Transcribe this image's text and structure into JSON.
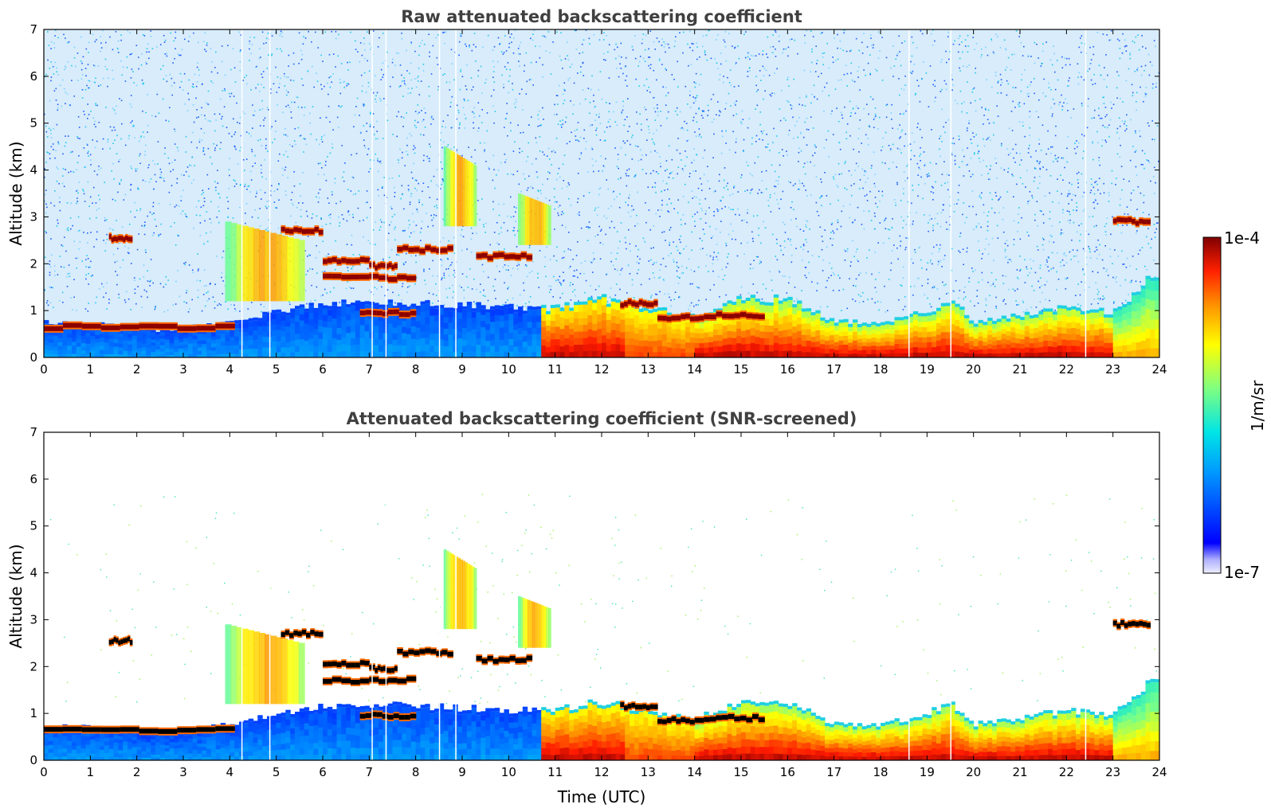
{
  "chart_data": [
    {
      "type": "heatmap",
      "title": "Raw attenuated backscattering coefficient",
      "xlabel": "",
      "ylabel": "Altitude (km)",
      "xlim": [
        0,
        24
      ],
      "ylim": [
        0,
        7
      ],
      "xticks": [
        "0",
        "1",
        "2",
        "3",
        "4",
        "5",
        "6",
        "7",
        "8",
        "9",
        "10",
        "11",
        "12",
        "13",
        "14",
        "15",
        "16",
        "17",
        "18",
        "19",
        "20",
        "21",
        "22",
        "23",
        "24"
      ],
      "yticks": [
        "0",
        "1",
        "2",
        "3",
        "4",
        "5",
        "6",
        "7"
      ],
      "screened": false
    },
    {
      "type": "heatmap",
      "title": "Attenuated backscattering coefficient (SNR-screened)",
      "xlabel": "Time (UTC)",
      "ylabel": "Altitude (km)",
      "xlim": [
        0,
        24
      ],
      "ylim": [
        0,
        7
      ],
      "xticks": [
        "0",
        "1",
        "2",
        "3",
        "4",
        "5",
        "6",
        "7",
        "8",
        "9",
        "10",
        "11",
        "12",
        "13",
        "14",
        "15",
        "16",
        "17",
        "18",
        "19",
        "20",
        "21",
        "22",
        "23",
        "24"
      ],
      "yticks": [
        "0",
        "1",
        "2",
        "3",
        "4",
        "5",
        "6",
        "7"
      ],
      "screened": true
    }
  ],
  "colorbar": {
    "max_label": "1e-4",
    "min_label": "1e-7",
    "unit_label": "1/m/sr",
    "scale": "log"
  },
  "features": {
    "boundary_layer_top_km": [
      [
        0,
        0.7
      ],
      [
        2,
        0.6
      ],
      [
        2.5,
        0.5
      ],
      [
        4,
        0.7
      ],
      [
        6,
        1.1
      ],
      [
        8,
        1.1
      ],
      [
        10,
        1.0
      ],
      [
        11,
        1.0
      ],
      [
        12,
        1.2
      ],
      [
        13,
        1.0
      ],
      [
        14,
        0.8
      ],
      [
        15,
        1.2
      ],
      [
        16,
        1.2
      ],
      [
        17,
        0.7
      ],
      [
        18,
        0.7
      ],
      [
        19,
        0.9
      ],
      [
        19.5,
        1.2
      ],
      [
        20,
        0.7
      ],
      [
        22,
        1.0
      ],
      [
        23,
        0.9
      ],
      [
        23.8,
        1.6
      ]
    ],
    "cloud_layers": [
      {
        "t0": 0.0,
        "t1": 4.1,
        "alt_km": 0.65
      },
      {
        "t0": 1.4,
        "t1": 1.9,
        "alt_km": 2.55
      },
      {
        "t0": 5.1,
        "t1": 6.0,
        "alt_km": 2.7
      },
      {
        "t0": 6.0,
        "t1": 7.0,
        "alt_km": 2.05
      },
      {
        "t0": 7.0,
        "t1": 7.6,
        "alt_km": 1.95
      },
      {
        "t0": 6.0,
        "t1": 8.0,
        "alt_km": 1.7
      },
      {
        "t0": 6.8,
        "t1": 8.0,
        "alt_km": 0.95
      },
      {
        "t0": 7.6,
        "t1": 8.8,
        "alt_km": 2.3
      },
      {
        "t0": 9.3,
        "t1": 10.5,
        "alt_km": 2.15
      },
      {
        "t0": 12.4,
        "t1": 13.2,
        "alt_km": 1.15
      },
      {
        "t0": 13.2,
        "t1": 14.2,
        "alt_km": 0.85
      },
      {
        "t0": 14.2,
        "t1": 15.5,
        "alt_km": 0.9
      },
      {
        "t0": 23.0,
        "t1": 23.8,
        "alt_km": 2.9
      }
    ],
    "aerosol_plumes": [
      {
        "t0": 3.9,
        "t1": 5.6,
        "alt_lo_km": 1.2,
        "alt_hi_km": 2.9
      },
      {
        "t0": 8.6,
        "t1": 9.3,
        "alt_lo_km": 2.8,
        "alt_hi_km": 4.5
      },
      {
        "t0": 10.2,
        "t1": 10.9,
        "alt_lo_km": 2.4,
        "alt_hi_km": 3.5
      }
    ]
  }
}
